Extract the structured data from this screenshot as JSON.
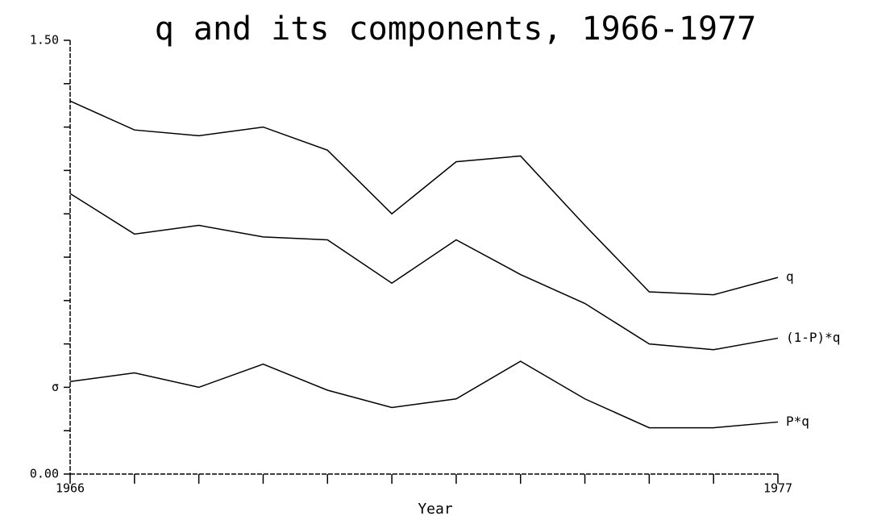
{
  "chart_data": {
    "type": "line",
    "title": "q and its components, 1966-1977",
    "x_label": "Year",
    "x": [
      1966,
      1967,
      1968,
      1969,
      1970,
      1971,
      1972,
      1973,
      1974,
      1975,
      1976,
      1977
    ],
    "xlim": [
      1966,
      1977
    ],
    "xticks": [
      1966,
      {
        "value": 1967,
        "label": null
      },
      {
        "value": 1968,
        "label": null
      },
      {
        "value": 1969,
        "label": null
      },
      {
        "value": 1970,
        "label": null
      },
      {
        "value": 1971,
        "label": null
      },
      {
        "value": 1972,
        "label": null
      },
      {
        "value": 1973,
        "label": null
      },
      {
        "value": 1974,
        "label": null
      },
      {
        "value": 1975,
        "label": null
      },
      {
        "value": 1976,
        "label": null
      },
      1977
    ],
    "ylim": [
      0,
      1.5
    ],
    "yticks": [
      {
        "value": 0,
        "label": "0.00"
      },
      {
        "value": 0.15,
        "label": null
      },
      {
        "value": 0.3,
        "label": "σ"
      },
      {
        "value": 0.45,
        "label": null
      },
      {
        "value": 0.6,
        "label": null
      },
      {
        "value": 0.75,
        "label": null
      },
      {
        "value": 0.9,
        "label": null
      },
      {
        "value": 1.05,
        "label": null
      },
      {
        "value": 1.2,
        "label": null
      },
      {
        "value": 1.35,
        "label": null
      },
      {
        "value": 1.5,
        "label": "1.50"
      }
    ],
    "series": [
      {
        "name": "q",
        "color": "#000000",
        "values": [
          1.29,
          1.19,
          1.17,
          1.2,
          1.12,
          0.9,
          1.08,
          1.1,
          0.86,
          0.63,
          0.62,
          0.68
        ]
      },
      {
        "name": "(1-P)*q",
        "color": "#000000",
        "values": [
          0.97,
          0.83,
          0.86,
          0.82,
          0.81,
          0.66,
          0.81,
          0.69,
          0.59,
          0.45,
          0.43,
          0.47
        ]
      },
      {
        "name": "P*q",
        "color": "#000000",
        "values": [
          0.32,
          0.35,
          0.3,
          0.38,
          0.29,
          0.23,
          0.26,
          0.39,
          0.26,
          0.16,
          0.16,
          0.18
        ]
      }
    ]
  }
}
